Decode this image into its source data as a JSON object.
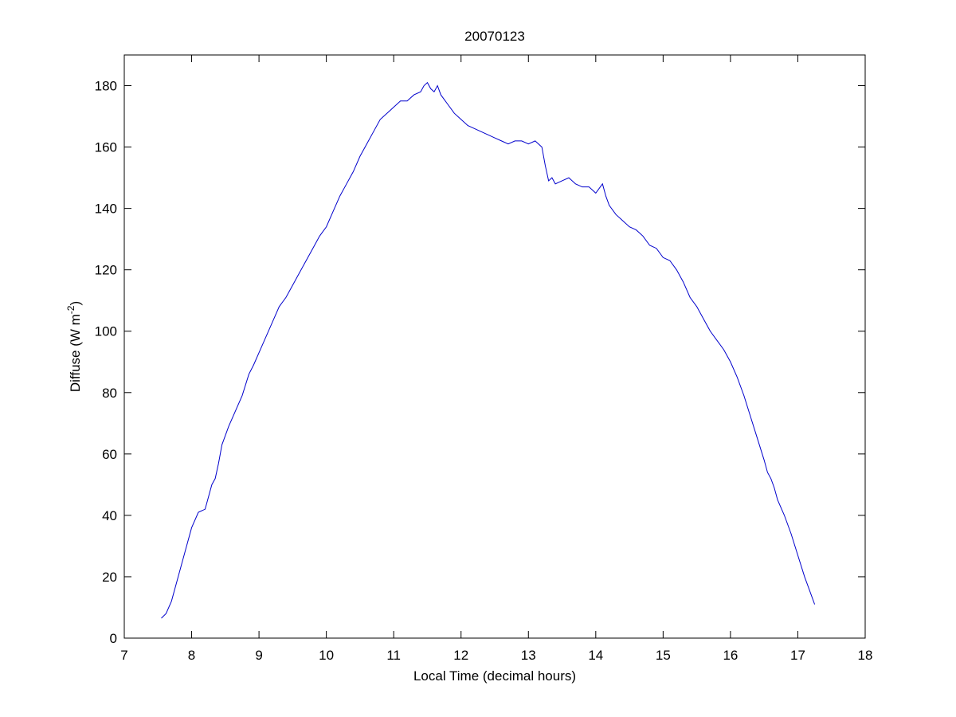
{
  "chart_data": {
    "type": "line",
    "title": "20070123",
    "xlabel": "Local Time (decimal hours)",
    "ylabel": {
      "main": "Diffuse (W m",
      "superscript": "-2",
      "close": ")"
    },
    "xlim": [
      7,
      18
    ],
    "ylim": [
      0,
      190
    ],
    "xticks": [
      "7",
      "8",
      "9",
      "10",
      "11",
      "12",
      "13",
      "14",
      "15",
      "16",
      "17",
      "18"
    ],
    "yticks": [
      "0",
      "20",
      "40",
      "60",
      "80",
      "100",
      "120",
      "140",
      "160",
      "180"
    ],
    "grid": false,
    "line_color": "#0000cc",
    "series": [
      {
        "x": [
          7.55,
          7.62,
          7.7,
          7.8,
          7.9,
          8.0,
          8.1,
          8.2,
          8.25,
          8.3,
          8.35,
          8.4,
          8.45,
          8.55,
          8.65,
          8.75,
          8.85,
          8.92,
          9.0,
          9.1,
          9.2,
          9.3,
          9.4,
          9.5,
          9.6,
          9.7,
          9.8,
          9.9,
          10.0,
          10.1,
          10.2,
          10.3,
          10.4,
          10.5,
          10.6,
          10.7,
          10.8,
          10.9,
          11.0,
          11.1,
          11.2,
          11.3,
          11.4,
          11.45,
          11.5,
          11.55,
          11.6,
          11.65,
          11.7,
          11.8,
          11.9,
          12.0,
          12.1,
          12.2,
          12.3,
          12.4,
          12.5,
          12.6,
          12.7,
          12.8,
          12.9,
          13.0,
          13.1,
          13.2,
          13.25,
          13.3,
          13.35,
          13.4,
          13.5,
          13.6,
          13.7,
          13.8,
          13.9,
          14.0,
          14.1,
          14.15,
          14.2,
          14.3,
          14.4,
          14.5,
          14.6,
          14.7,
          14.8,
          14.9,
          15.0,
          15.1,
          15.2,
          15.3,
          15.4,
          15.5,
          15.6,
          15.7,
          15.8,
          15.9,
          16.0,
          16.1,
          16.2,
          16.3,
          16.4,
          16.5,
          16.55,
          16.6,
          16.65,
          16.7,
          16.8,
          16.9,
          17.0,
          17.1,
          17.2,
          17.25
        ],
        "y": [
          6.5,
          8,
          12,
          20,
          28,
          36,
          41,
          42,
          46,
          50,
          52,
          57,
          63,
          69,
          74,
          79,
          86,
          89,
          93,
          98,
          103,
          108,
          111,
          115,
          119,
          123,
          127,
          131,
          134,
          139,
          144,
          148,
          152,
          157,
          161,
          165,
          169,
          171,
          173,
          175,
          175,
          177,
          178,
          180,
          181,
          179,
          178,
          180,
          177,
          174,
          171,
          169,
          167,
          166,
          165,
          164,
          163,
          162,
          161,
          162,
          162,
          161,
          162,
          160,
          154,
          149,
          150,
          148,
          149,
          150,
          148,
          147,
          147,
          145,
          148,
          144,
          141,
          138,
          136,
          134,
          133,
          131,
          128,
          127,
          124,
          123,
          120,
          116,
          111,
          108,
          104,
          100,
          97,
          94,
          90,
          85,
          79,
          72,
          65,
          58,
          54,
          52,
          49,
          45,
          40,
          34,
          27,
          20,
          14,
          11
        ]
      }
    ]
  }
}
